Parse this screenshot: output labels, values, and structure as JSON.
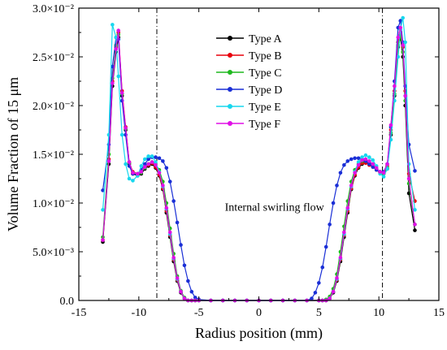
{
  "chart_data": {
    "type": "line",
    "xlabel": "Radius position (mm)",
    "ylabel": "Volume Fraction of 15 μm",
    "xlim": [
      -15,
      15
    ],
    "ylim": [
      0,
      0.03
    ],
    "xticks": [
      -15,
      -10,
      -5,
      0,
      5,
      10,
      15
    ],
    "xtick_labels": [
      "-15",
      "-10",
      "-5",
      "0",
      "5",
      "10",
      "15"
    ],
    "yticks": [
      0,
      0.005,
      0.01,
      0.015,
      0.02,
      0.025,
      0.03
    ],
    "ytick_labels": [
      "0.0",
      "5.0×10⁻³",
      "1.0×10⁻²",
      "1.5×10⁻²",
      "2.0×10⁻²",
      "2.5×10⁻²",
      "3.0×10⁻²"
    ],
    "grid": false,
    "legend_position": "top-center",
    "reference_lines_x": [
      -8.5,
      10.3
    ],
    "annotations": [
      {
        "text": "Internal swirling flow",
        "x": 1.3,
        "y": 0.0092
      }
    ],
    "series": [
      {
        "name": "Type A",
        "color": "#000000",
        "marker": "circle",
        "x": [
          -13.0,
          -12.5,
          -12.2,
          -11.9,
          -11.7,
          -11.4,
          -11.1,
          -10.8,
          -10.5,
          -10.1,
          -9.8,
          -9.5,
          -9.2,
          -8.9,
          -8.6,
          -8.3,
          -8.0,
          -7.7,
          -7.4,
          -7.1,
          -6.8,
          -6.5,
          -6.2,
          -5.9,
          -5.6,
          -5.3,
          -5.0,
          -4.0,
          -3.0,
          -2.0,
          -1.0,
          0.0,
          1.0,
          2.0,
          3.0,
          4.0,
          5.0,
          5.3,
          5.6,
          5.9,
          6.2,
          6.5,
          6.8,
          7.1,
          7.4,
          7.7,
          8.0,
          8.3,
          8.6,
          8.9,
          9.2,
          9.5,
          9.8,
          10.1,
          10.4,
          10.7,
          11.0,
          11.3,
          11.6,
          11.8,
          12.0,
          12.2,
          12.5,
          13.0
        ],
        "y": [
          0.006,
          0.014,
          0.022,
          0.0255,
          0.027,
          0.021,
          0.0175,
          0.014,
          0.013,
          0.0128,
          0.013,
          0.0135,
          0.0138,
          0.014,
          0.0136,
          0.0128,
          0.0114,
          0.009,
          0.0065,
          0.004,
          0.002,
          0.0008,
          0.0002,
          0.0,
          0.0,
          0.0,
          0.0,
          0.0,
          0.0,
          0.0,
          0.0,
          0.0,
          0.0,
          0.0,
          0.0,
          0.0,
          0.0,
          0.0,
          0.0,
          0.0002,
          0.0008,
          0.002,
          0.004,
          0.0065,
          0.009,
          0.0114,
          0.0128,
          0.0136,
          0.014,
          0.0142,
          0.014,
          0.0138,
          0.0135,
          0.0132,
          0.013,
          0.0135,
          0.017,
          0.021,
          0.026,
          0.027,
          0.025,
          0.02,
          0.011,
          0.0072
        ]
      },
      {
        "name": "Type B",
        "color": "#e8000b",
        "marker": "circle",
        "x": [
          -13.0,
          -12.5,
          -12.2,
          -11.9,
          -11.7,
          -11.4,
          -11.1,
          -10.8,
          -10.5,
          -10.1,
          -9.8,
          -9.5,
          -9.2,
          -8.9,
          -8.6,
          -8.3,
          -8.0,
          -7.7,
          -7.4,
          -7.1,
          -6.8,
          -6.5,
          -6.2,
          -5.9,
          -5.6,
          -5.3,
          -5.0,
          -4.0,
          -3.0,
          -2.0,
          -1.0,
          0.0,
          1.0,
          2.0,
          3.0,
          4.0,
          5.0,
          5.3,
          5.6,
          5.9,
          6.2,
          6.5,
          6.8,
          7.1,
          7.4,
          7.7,
          8.0,
          8.3,
          8.6,
          8.9,
          9.2,
          9.5,
          9.8,
          10.1,
          10.4,
          10.7,
          11.0,
          11.3,
          11.6,
          11.8,
          12.0,
          12.2,
          12.5,
          13.0
        ],
        "y": [
          0.0062,
          0.0145,
          0.0225,
          0.026,
          0.0275,
          0.0215,
          0.0178,
          0.0142,
          0.0132,
          0.013,
          0.0132,
          0.0136,
          0.0139,
          0.0141,
          0.0137,
          0.0129,
          0.0115,
          0.0092,
          0.0067,
          0.0042,
          0.0021,
          0.0009,
          0.0002,
          0.0,
          0.0,
          0.0,
          0.0,
          0.0,
          0.0,
          0.0,
          0.0,
          0.0,
          0.0,
          0.0,
          0.0,
          0.0,
          0.0,
          0.0,
          0.0,
          0.0002,
          0.0009,
          0.0021,
          0.0042,
          0.0067,
          0.0092,
          0.0115,
          0.0129,
          0.0137,
          0.0141,
          0.0141,
          0.0139,
          0.0137,
          0.0134,
          0.0131,
          0.013,
          0.0138,
          0.0175,
          0.0215,
          0.0265,
          0.0275,
          0.026,
          0.0215,
          0.013,
          0.0102
        ]
      },
      {
        "name": "Type C",
        "color": "#1fb81f",
        "marker": "circle",
        "x": [
          -13.0,
          -12.5,
          -12.2,
          -11.9,
          -11.7,
          -11.4,
          -11.1,
          -10.8,
          -10.5,
          -10.1,
          -9.8,
          -9.5,
          -9.2,
          -8.9,
          -8.6,
          -8.3,
          -8.0,
          -7.7,
          -7.4,
          -7.1,
          -6.8,
          -6.5,
          -6.2,
          -5.9,
          -5.6,
          -5.3,
          -5.0,
          -4.0,
          -3.0,
          -2.0,
          -1.0,
          0.0,
          1.0,
          2.0,
          3.0,
          4.0,
          5.0,
          5.3,
          5.6,
          5.9,
          6.2,
          6.5,
          6.8,
          7.1,
          7.4,
          7.7,
          8.0,
          8.3,
          8.6,
          8.9,
          9.2,
          9.5,
          9.8,
          10.1,
          10.4,
          10.7,
          11.0,
          11.3,
          11.6,
          11.8,
          12.0,
          12.2,
          12.5,
          13.0
        ],
        "y": [
          0.0065,
          0.015,
          0.0228,
          0.0262,
          0.0273,
          0.0212,
          0.0176,
          0.0141,
          0.0131,
          0.0129,
          0.0131,
          0.0136,
          0.014,
          0.0142,
          0.014,
          0.0134,
          0.0122,
          0.01,
          0.0074,
          0.0048,
          0.0025,
          0.001,
          0.0003,
          0.0,
          0.0,
          0.0,
          0.0,
          0.0,
          0.0,
          0.0,
          0.0,
          0.0,
          0.0,
          0.0,
          0.0,
          0.0,
          0.0,
          0.0,
          0.0001,
          0.0004,
          0.0012,
          0.0027,
          0.005,
          0.0076,
          0.0102,
          0.0122,
          0.0134,
          0.014,
          0.0143,
          0.0143,
          0.0141,
          0.0138,
          0.0135,
          0.0132,
          0.013,
          0.0136,
          0.0172,
          0.0212,
          0.0262,
          0.0272,
          0.0255,
          0.0205,
          0.012,
          0.0078
        ]
      },
      {
        "name": "Type D",
        "color": "#1a2fd6",
        "marker": "circle",
        "x": [
          -13.0,
          -12.5,
          -12.2,
          -11.9,
          -11.7,
          -11.4,
          -11.1,
          -10.8,
          -10.5,
          -10.1,
          -9.8,
          -9.5,
          -9.2,
          -8.9,
          -8.6,
          -8.3,
          -8.0,
          -7.7,
          -7.4,
          -7.1,
          -6.8,
          -6.5,
          -6.2,
          -5.9,
          -5.6,
          -5.3,
          -5.0,
          -4.0,
          -3.0,
          -2.0,
          -1.0,
          0.0,
          1.0,
          2.0,
          3.0,
          4.0,
          4.4,
          4.7,
          5.0,
          5.3,
          5.6,
          5.9,
          6.2,
          6.5,
          6.8,
          7.1,
          7.4,
          7.7,
          8.0,
          8.3,
          8.6,
          8.9,
          9.2,
          9.5,
          9.8,
          10.1,
          10.4,
          10.7,
          11.0,
          11.3,
          11.6,
          11.8,
          12.0,
          12.2,
          12.5,
          13.0
        ],
        "y": [
          0.0113,
          0.016,
          0.024,
          0.027,
          0.0268,
          0.0205,
          0.017,
          0.0138,
          0.013,
          0.013,
          0.0134,
          0.014,
          0.0145,
          0.0147,
          0.0147,
          0.0146,
          0.0143,
          0.0136,
          0.0122,
          0.0102,
          0.008,
          0.0057,
          0.0036,
          0.002,
          0.0009,
          0.0003,
          0.0001,
          0.0,
          0.0,
          0.0,
          0.0,
          0.0,
          0.0,
          0.0,
          0.0,
          0.0,
          0.0002,
          0.0008,
          0.0018,
          0.0034,
          0.0055,
          0.0078,
          0.01,
          0.0118,
          0.0131,
          0.0139,
          0.0143,
          0.0145,
          0.0146,
          0.0146,
          0.0145,
          0.0143,
          0.014,
          0.0137,
          0.0134,
          0.0132,
          0.0132,
          0.014,
          0.0178,
          0.0225,
          0.028,
          0.0287,
          0.0265,
          0.022,
          0.016,
          0.0133
        ]
      },
      {
        "name": "Type E",
        "color": "#17d7ee",
        "marker": "circle",
        "x": [
          -13.0,
          -12.5,
          -12.2,
          -11.9,
          -11.7,
          -11.4,
          -11.1,
          -10.8,
          -10.5,
          -10.1,
          -9.8,
          -9.5,
          -9.2,
          -8.9,
          -8.6,
          -8.3,
          -8.0,
          -7.7,
          -7.4,
          -7.1,
          -6.8,
          -6.5,
          -6.2,
          -5.9,
          -5.6,
          -5.3,
          -5.0,
          -4.0,
          -3.0,
          -2.0,
          -1.0,
          0.0,
          1.0,
          2.0,
          3.0,
          4.0,
          5.0,
          5.3,
          5.6,
          5.9,
          6.2,
          6.5,
          6.8,
          7.1,
          7.4,
          7.7,
          8.0,
          8.3,
          8.6,
          8.9,
          9.2,
          9.5,
          9.8,
          10.1,
          10.4,
          10.7,
          11.0,
          11.3,
          11.6,
          11.8,
          12.0,
          12.2,
          12.5,
          13.0
        ],
        "y": [
          0.0093,
          0.017,
          0.0283,
          0.027,
          0.023,
          0.017,
          0.014,
          0.0125,
          0.0123,
          0.0128,
          0.0138,
          0.0145,
          0.0148,
          0.0148,
          0.0142,
          0.0132,
          0.0117,
          0.0094,
          0.0068,
          0.0043,
          0.0022,
          0.0009,
          0.0002,
          0.0,
          0.0,
          0.0,
          0.0,
          0.0,
          0.0,
          0.0,
          0.0,
          0.0,
          0.0,
          0.0,
          0.0,
          0.0,
          0.0,
          0.0,
          0.0,
          0.0002,
          0.0009,
          0.0022,
          0.0043,
          0.0068,
          0.0094,
          0.0117,
          0.0132,
          0.0142,
          0.0147,
          0.0149,
          0.0147,
          0.0144,
          0.0138,
          0.013,
          0.0127,
          0.0135,
          0.0165,
          0.0205,
          0.025,
          0.0278,
          0.029,
          0.0265,
          0.014,
          0.0093
        ]
      },
      {
        "name": "Type F",
        "color": "#e010e6",
        "marker": "circle",
        "x": [
          -13.0,
          -12.5,
          -12.2,
          -11.9,
          -11.7,
          -11.4,
          -11.1,
          -10.8,
          -10.5,
          -10.1,
          -9.8,
          -9.5,
          -9.2,
          -8.9,
          -8.6,
          -8.3,
          -8.0,
          -7.7,
          -7.4,
          -7.1,
          -6.8,
          -6.5,
          -6.2,
          -5.9,
          -5.6,
          -5.3,
          -5.0,
          -4.0,
          -3.0,
          -2.0,
          -1.0,
          0.0,
          1.0,
          2.0,
          3.0,
          4.0,
          5.0,
          5.3,
          5.6,
          5.9,
          6.2,
          6.5,
          6.8,
          7.1,
          7.4,
          7.7,
          8.0,
          8.3,
          8.6,
          8.9,
          9.2,
          9.5,
          9.8,
          10.1,
          10.4,
          10.7,
          11.0,
          11.3,
          11.6,
          11.8,
          12.0,
          12.2,
          12.5,
          13.0
        ],
        "y": [
          0.0062,
          0.0143,
          0.0223,
          0.0258,
          0.0277,
          0.0213,
          0.0177,
          0.0142,
          0.0131,
          0.013,
          0.0132,
          0.0137,
          0.014,
          0.0142,
          0.0139,
          0.0131,
          0.0118,
          0.0095,
          0.007,
          0.0044,
          0.0023,
          0.0009,
          0.0002,
          0.0,
          0.0,
          0.0,
          0.0,
          0.0,
          0.0,
          0.0,
          0.0,
          0.0,
          0.0,
          0.0,
          0.0,
          0.0,
          0.0,
          0.0,
          0.0,
          0.0002,
          0.0009,
          0.0023,
          0.0044,
          0.007,
          0.0095,
          0.0118,
          0.0131,
          0.0139,
          0.0144,
          0.0145,
          0.0143,
          0.014,
          0.0136,
          0.0132,
          0.0131,
          0.014,
          0.018,
          0.022,
          0.027,
          0.028,
          0.0262,
          0.021,
          0.0125,
          0.0078
        ]
      }
    ]
  }
}
